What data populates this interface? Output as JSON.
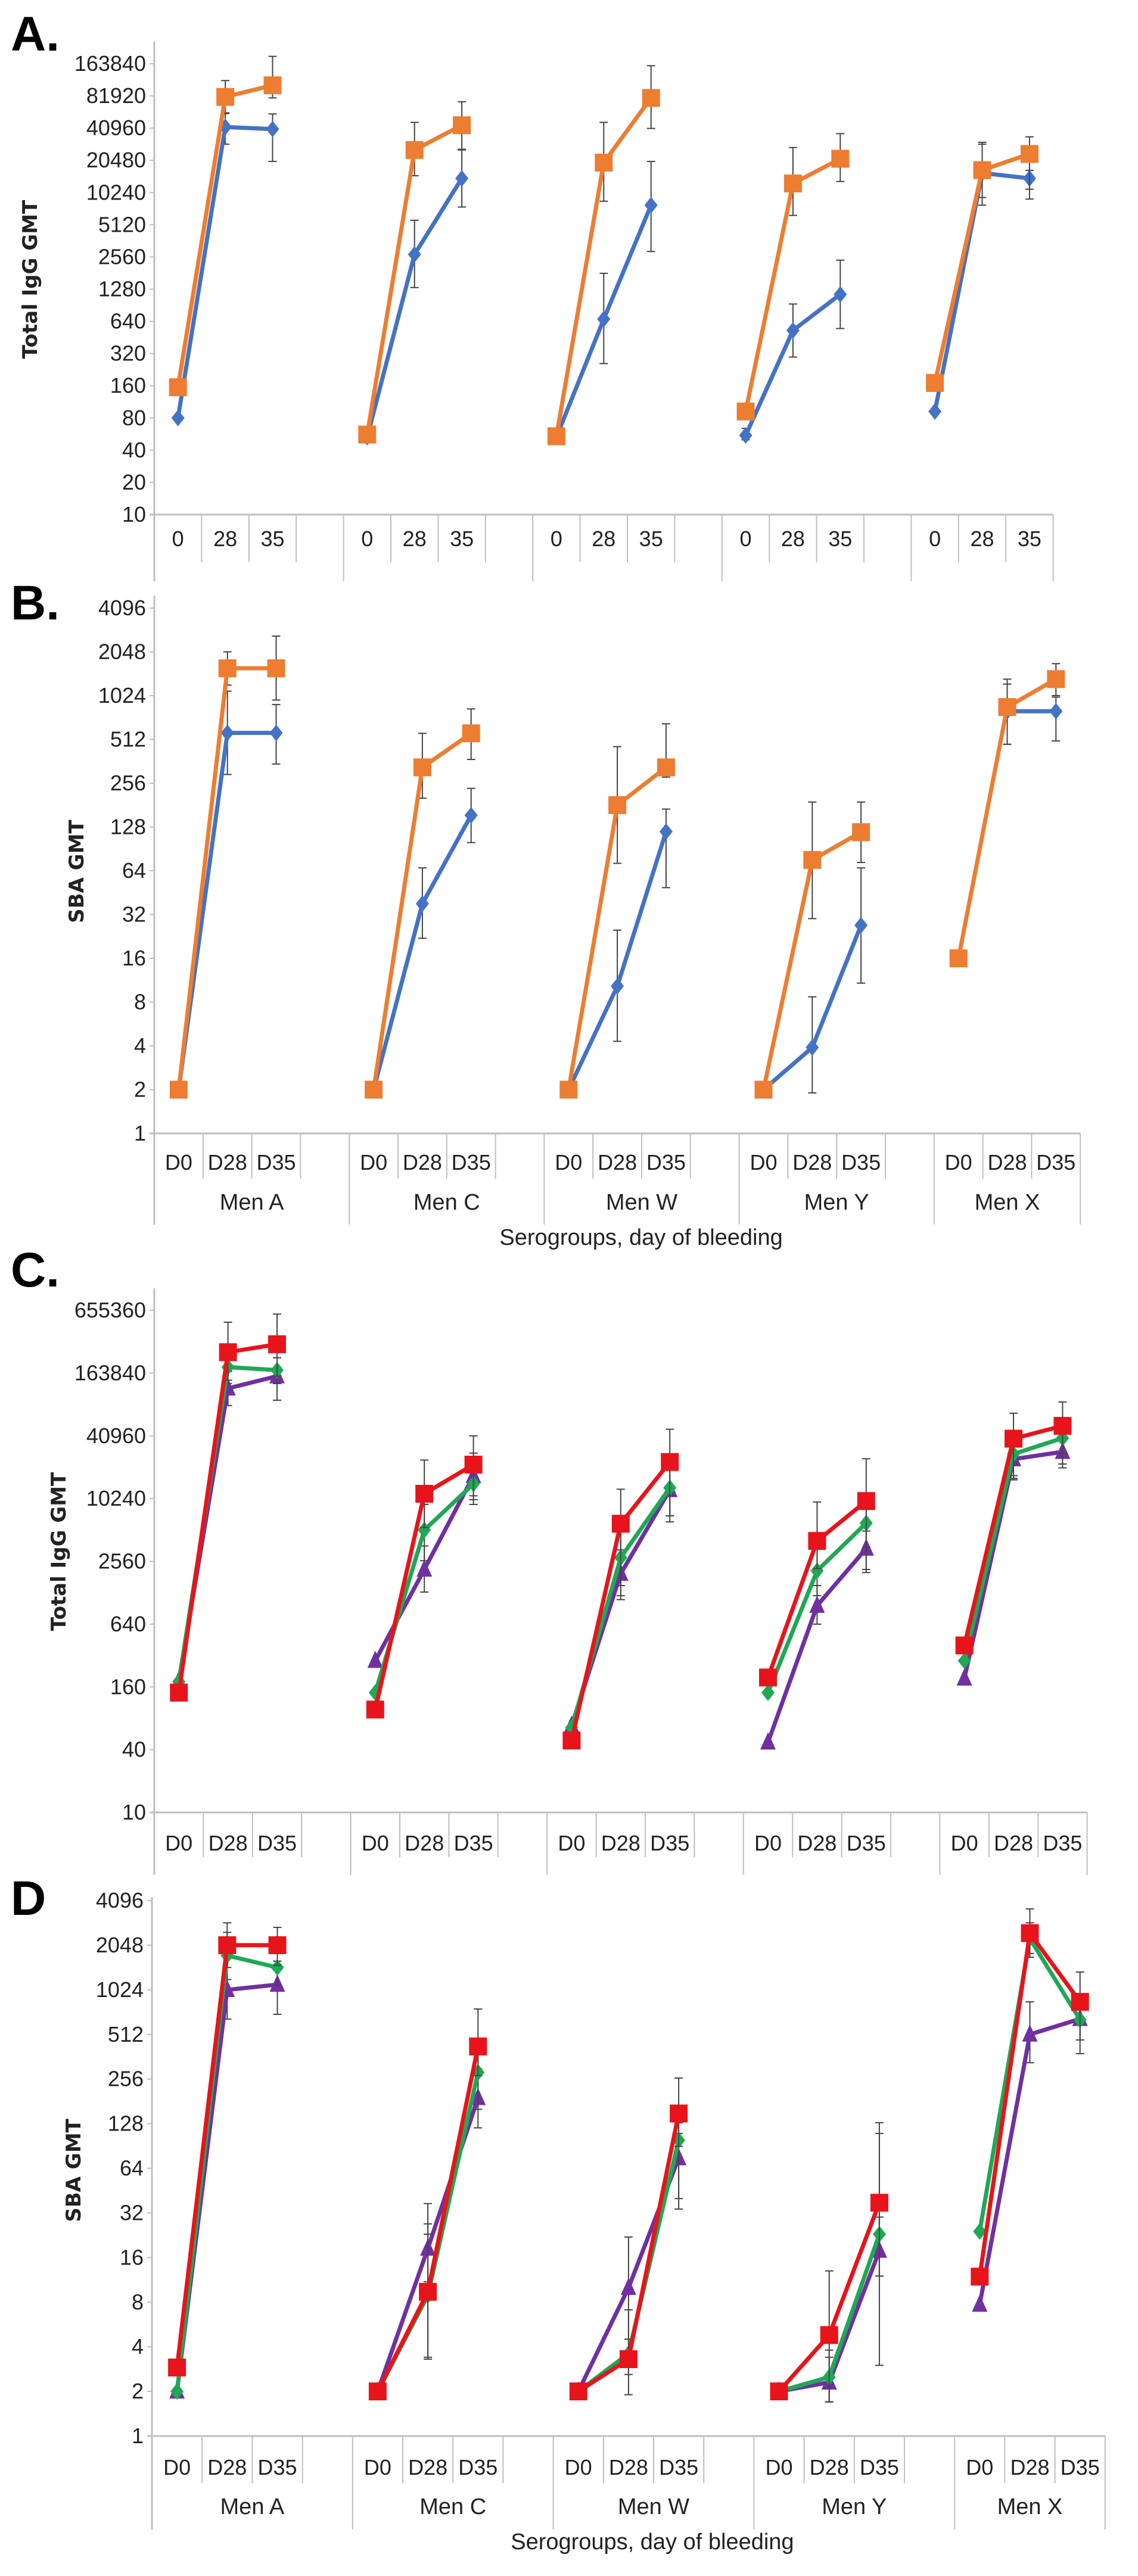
{
  "colors": {
    "blue": "#4472C4",
    "orange": "#ED7D31",
    "red": "#E8141B",
    "green": "#1FA855",
    "purple": "#7030A0",
    "axis": "#BFBFBF",
    "error": "#444444"
  },
  "chart_data": [
    {
      "panel_label": "A.",
      "type": "line",
      "ylabel": "Total IgG GMT",
      "xlabel": "",
      "yscale": "log2",
      "ylim": [
        10,
        163840
      ],
      "yticks": [
        "10",
        "20",
        "40",
        "80",
        "160",
        "320",
        "640",
        "1280",
        "2560",
        "5120",
        "10240",
        "20480",
        "40960",
        "81920",
        "163840"
      ],
      "groups": [
        "",
        "",
        "",
        "",
        ""
      ],
      "days": [
        "0",
        "28",
        "35"
      ],
      "series": [
        {
          "color": "blue",
          "marker": "diamond",
          "values": [
            80,
            42000,
            40100,
            53,
            2700,
            13900,
            53,
            672,
            7800,
            55,
            527,
            1145,
            92,
            15600,
            13900
          ],
          "err_low": [
            null,
            29000,
            20000,
            null,
            1325,
            7500,
            null,
            258,
            2880,
            50,
            297,
            549,
            null,
            7800,
            11000
          ],
          "err_high": [
            null,
            57000,
            55600,
            null,
            5640,
            26000,
            null,
            1800,
            20000,
            64,
            930,
            2390,
            null,
            30200,
            16500
          ]
        },
        {
          "color": "orange",
          "marker": "square",
          "values": [
            155,
            80200,
            103000,
            56,
            25600,
            43600,
            54,
            19500,
            78500,
            92,
            12450,
            21200,
            170,
            16600,
            23500
          ],
          "err_low": [
            null,
            56000,
            78500,
            null,
            14700,
            25600,
            null,
            8500,
            40700,
            null,
            6260,
            13000,
            null,
            9200,
            8900
          ],
          "err_high": [
            null,
            114000,
            192000,
            null,
            46400,
            72300,
            null,
            46400,
            157000,
            null,
            27000,
            36400,
            null,
            29000,
            34000
          ]
        }
      ]
    },
    {
      "panel_label": "B.",
      "type": "line",
      "ylabel": "SBA GMT",
      "xlabel": "Serogroups, day of bleeding",
      "yscale": "log2",
      "ylim": [
        1,
        4096
      ],
      "yticks": [
        "1",
        "2",
        "4",
        "8",
        "16",
        "32",
        "64",
        "128",
        "256",
        "512",
        "1024",
        "2048",
        "4096"
      ],
      "groups": [
        "Men A",
        "Men C",
        "Men W",
        "Men Y",
        "Men X"
      ],
      "days": [
        "D0",
        "D28",
        "D35"
      ],
      "series": [
        {
          "color": "blue",
          "marker": "diamond",
          "values": [
            2,
            568,
            568,
            2,
            38,
            154,
            2,
            10.3,
            119,
            2,
            3.9,
            27,
            null,
            800,
            800
          ],
          "err_low": [
            null,
            294,
            347,
            null,
            22,
            100,
            null,
            4.3,
            49,
            null,
            1.9,
            10.8,
            null,
            474,
            500
          ],
          "err_high": [
            null,
            1100,
            890,
            null,
            67,
            236,
            null,
            25,
            170,
            null,
            8.7,
            67,
            null,
            1230,
            1000
          ]
        },
        {
          "color": "orange",
          "marker": "square",
          "values": [
            2,
            1580,
            1580,
            2,
            329,
            564,
            2,
            181,
            329,
            2,
            76,
            118,
            16,
            855,
            1330
          ],
          "err_low": [
            null,
            1210,
            955,
            null,
            202,
            373,
            null,
            72,
            282,
            null,
            30,
            73,
            null,
            474,
            1024
          ],
          "err_high": [
            null,
            2050,
            2630,
            null,
            564,
            830,
            null,
            457,
            656,
            null,
            190,
            190,
            null,
            1330,
            1700
          ]
        }
      ]
    },
    {
      "panel_label": "C.",
      "type": "line",
      "ylabel": "Total IgG GMT",
      "xlabel": "",
      "yscale": "log2",
      "ylim": [
        10,
        655360
      ],
      "yticks": [
        "10",
        "40",
        "160",
        "640",
        "2560",
        "10240",
        "40960",
        "163840",
        "655360"
      ],
      "groups": [
        "",
        "",
        "",
        "",
        ""
      ],
      "days": [
        "D0",
        "D28",
        "D35"
      ],
      "series": [
        {
          "color": "purple",
          "marker": "triangle",
          "values": [
            184,
            117000,
            153000,
            285,
            2140,
            16900,
            68,
            1950,
            12400,
            47,
            963,
            3400,
            193,
            24500,
            28800
          ],
          "err_low": [
            null,
            80000,
            90000,
            null,
            1300,
            10000,
            null,
            1200,
            7000,
            null,
            640,
            2000,
            null,
            16000,
            22000
          ],
          "err_high": [
            null,
            170000,
            230000,
            null,
            3600,
            28000,
            null,
            3300,
            21000,
            null,
            1500,
            5000,
            null,
            36000,
            38000
          ]
        },
        {
          "color": "green",
          "marker": "diamond",
          "values": [
            180,
            187000,
            175000,
            141,
            5120,
            14200,
            65,
            2780,
            13000,
            141,
            2080,
            5970,
            285,
            27400,
            39000
          ],
          "err_low": [
            null,
            130000,
            130000,
            null,
            2600,
            9000,
            null,
            1500,
            7000,
            null,
            1200,
            3500,
            null,
            17000,
            28000
          ],
          "err_high": [
            null,
            260000,
            230000,
            null,
            9000,
            22000,
            null,
            5000,
            20000,
            null,
            3600,
            10000,
            null,
            43000,
            55000
          ]
        },
        {
          "color": "red",
          "marker": "square",
          "values": [
            141,
            260000,
            310000,
            97,
            11400,
            21700,
            49,
            5880,
            23000,
            197,
            4020,
            9700,
            400,
            38500,
            51100
          ],
          "err_low": [
            null,
            140000,
            153000,
            null,
            5400,
            10900,
            null,
            1100,
            6130,
            null,
            2190,
            2140,
            null,
            15500,
            20200
          ],
          "err_high": [
            null,
            504000,
            603000,
            null,
            24000,
            41000,
            null,
            12600,
            47400,
            null,
            9500,
            24700,
            null,
            67500,
            86600
          ]
        }
      ]
    },
    {
      "panel_label": "D",
      "type": "line",
      "ylabel": "SBA  GMT",
      "xlabel": "Serogroups, day of bleeding",
      "yscale": "log2",
      "ylim": [
        1,
        4096
      ],
      "yticks": [
        "1",
        "2",
        "4",
        "8",
        "16",
        "32",
        "64",
        "128",
        "256",
        "512",
        "1024",
        "2048",
        "4096"
      ],
      "groups": [
        "Men A",
        "Men C",
        "Men W",
        "Men Y",
        "Men X"
      ],
      "days": [
        "D0",
        "D28",
        "D35"
      ],
      "series": [
        {
          "color": "purple",
          "marker": "triangle",
          "values": [
            2,
            1024,
            1110,
            2,
            18.4,
            191,
            2,
            10,
            75,
            2,
            2.3,
            17.8,
            7.7,
            512,
            652
          ],
          "err_low": [
            null,
            650,
            700,
            null,
            11,
            120,
            null,
            4.5,
            34,
            null,
            1.7,
            12,
            null,
            330,
            470
          ],
          "err_high": [
            null,
            1700,
            1600,
            null,
            37,
            300,
            null,
            22,
            110,
            null,
            3.4,
            30,
            null,
            850,
            750
          ]
        },
        {
          "color": "green",
          "marker": "diamond",
          "values": [
            2,
            1745,
            1450,
            2,
            8.9,
            284,
            2,
            3.6,
            99,
            2,
            2.5,
            23,
            24,
            2270,
            644
          ],
          "err_low": [
            null,
            1200,
            1100,
            null,
            3.4,
            160,
            null,
            1.9,
            40,
            null,
            1.7,
            12,
            null,
            1800,
            380
          ],
          "err_high": [
            null,
            2500,
            1900,
            null,
            23,
            480,
            null,
            7.1,
            130,
            null,
            3.8,
            110,
            null,
            2900,
            900
          ]
        },
        {
          "color": "red",
          "marker": "square",
          "values": [
            2.9,
            2048,
            2048,
            2,
            9.4,
            425,
            2,
            3.3,
            150,
            2,
            4.8,
            37.5,
            11.9,
            2470,
            850
          ],
          "err_low": [
            null,
            1450,
            1500,
            null,
            3.3,
            270,
            null,
            2.6,
            90,
            null,
            1.7,
            3,
            null,
            1700,
            470
          ],
          "err_high": [
            null,
            2900,
            2700,
            null,
            27,
            760,
            null,
            4.5,
            260,
            null,
            13,
            130,
            null,
            3600,
            1350
          ]
        }
      ]
    }
  ]
}
